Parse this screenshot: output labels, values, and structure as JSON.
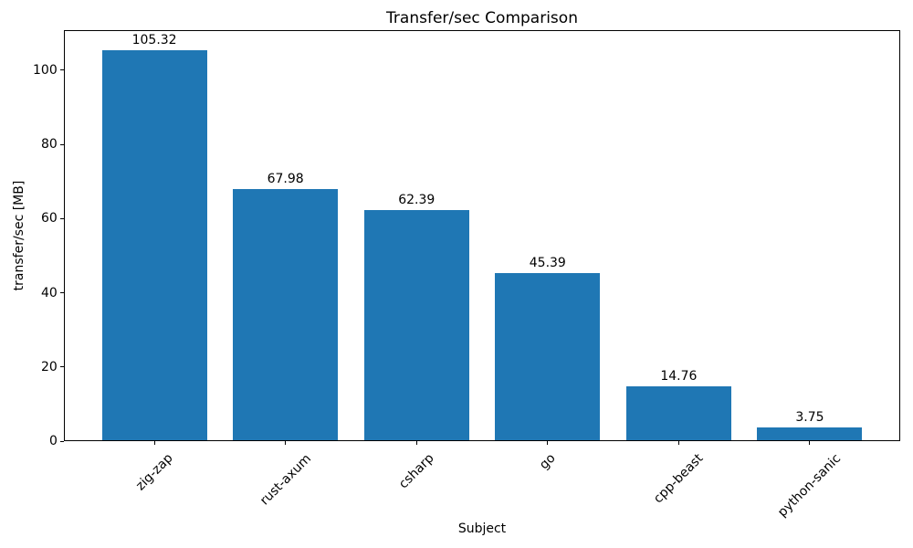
{
  "chart_data": {
    "type": "bar",
    "title": "Transfer/sec Comparison",
    "xlabel": "Subject",
    "ylabel": "transfer/sec [MB]",
    "categories": [
      "zig-zap",
      "rust-axum",
      "csharp",
      "go",
      "cpp-beast",
      "python-sanic"
    ],
    "values": [
      105.32,
      67.98,
      62.39,
      45.39,
      14.76,
      3.75
    ],
    "value_labels": [
      "105.32",
      "67.98",
      "62.39",
      "45.39",
      "14.76",
      "3.75"
    ],
    "yticks": [
      0,
      20,
      40,
      60,
      80,
      100
    ],
    "ylim": [
      0,
      110.8
    ],
    "xtick_rotation_deg": 45,
    "bar_color": "#1f77b4",
    "grid": false,
    "legend_position": "none"
  }
}
